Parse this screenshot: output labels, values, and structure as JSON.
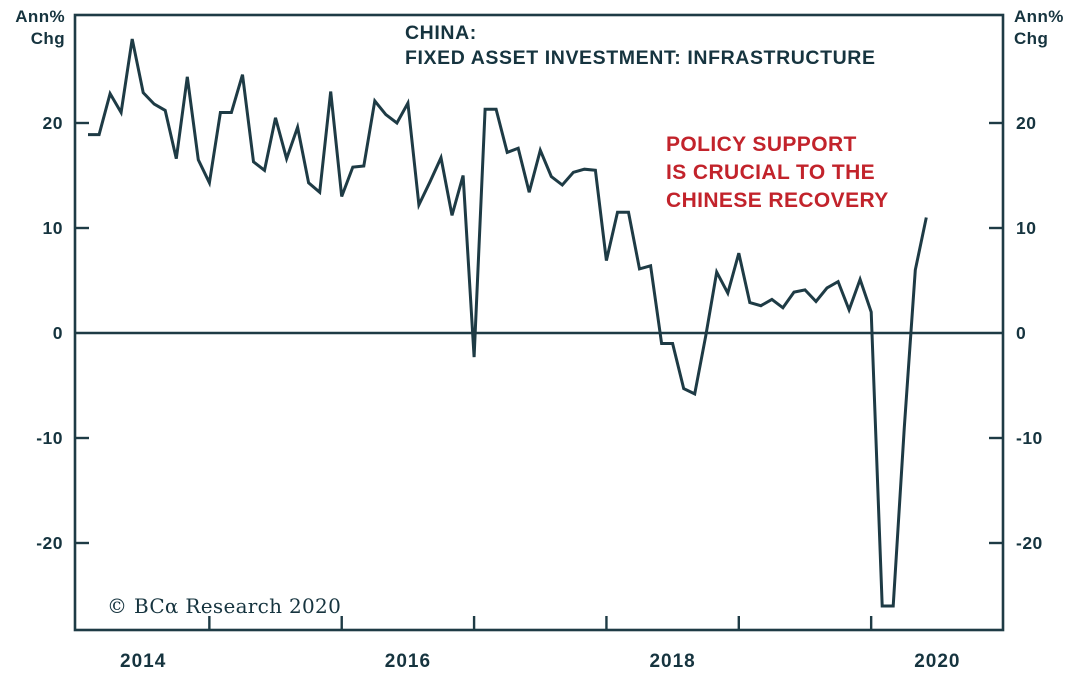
{
  "title": {
    "line1": "CHINA:",
    "line2": "FIXED ASSET INVESTMENT: INFRASTRUCTURE"
  },
  "annotation": {
    "lines": [
      "POLICY SUPPORT",
      "IS CRUCIAL TO THE",
      "CHINESE RECOVERY"
    ]
  },
  "axis_units": {
    "line1": "Ann%",
    "line2": "Chg"
  },
  "copyright": "© BCα Research 2020",
  "colors": {
    "line": "#1e3b45",
    "text": "#16343f",
    "annotation": "#c2232b",
    "background": "#ffffff"
  },
  "chart_data": {
    "type": "line",
    "title": "CHINA: FIXED ASSET INVESTMENT: INFRASTRUCTURE",
    "xlabel": "",
    "ylabel": "Ann% Chg",
    "xlim": [
      2014.0,
      2021.0
    ],
    "ylim": [
      -28.3,
      30.3
    ],
    "y_ticks": [
      20,
      10,
      0,
      -10,
      -20
    ],
    "x_tick_years": [
      2015,
      2016,
      2017,
      2018,
      2019,
      2020
    ],
    "x_axis_labels": [
      2014,
      2016,
      2018,
      2020
    ],
    "grid": false,
    "zero_line": true,
    "legend_position": "none",
    "series": [
      {
        "name": "Fixed asset investment: infrastructure (annual % change)",
        "points": [
          [
            "2014-02",
            18.9
          ],
          [
            "2014-03",
            18.9
          ],
          [
            "2014-04",
            22.8
          ],
          [
            "2014-05",
            21.0
          ],
          [
            "2014-06",
            28.0
          ],
          [
            "2014-07",
            22.9
          ],
          [
            "2014-08",
            21.8
          ],
          [
            "2014-09",
            21.2
          ],
          [
            "2014-10",
            16.6
          ],
          [
            "2014-11",
            24.4
          ],
          [
            "2014-12",
            16.5
          ],
          [
            "2015-01",
            14.3
          ],
          [
            "2015-02",
            21.0
          ],
          [
            "2015-03",
            21.0
          ],
          [
            "2015-04",
            24.6
          ],
          [
            "2015-05",
            16.3
          ],
          [
            "2015-06",
            15.5
          ],
          [
            "2015-07",
            20.5
          ],
          [
            "2015-08",
            16.6
          ],
          [
            "2015-09",
            19.6
          ],
          [
            "2015-10",
            14.3
          ],
          [
            "2015-11",
            13.4
          ],
          [
            "2015-12",
            23.0
          ],
          [
            "2016-01",
            13.0
          ],
          [
            "2016-02",
            15.8
          ],
          [
            "2016-03",
            15.9
          ],
          [
            "2016-04",
            22.1
          ],
          [
            "2016-05",
            20.8
          ],
          [
            "2016-06",
            20.0
          ],
          [
            "2016-07",
            21.9
          ],
          [
            "2016-08",
            12.2
          ],
          [
            "2016-09",
            14.4
          ],
          [
            "2016-10",
            16.7
          ],
          [
            "2016-11",
            11.2
          ],
          [
            "2016-12",
            15.0
          ],
          [
            "2017-01",
            -2.3
          ],
          [
            "2017-02",
            21.3
          ],
          [
            "2017-03",
            21.3
          ],
          [
            "2017-04",
            17.2
          ],
          [
            "2017-05",
            17.6
          ],
          [
            "2017-06",
            13.4
          ],
          [
            "2017-07",
            17.4
          ],
          [
            "2017-08",
            14.9
          ],
          [
            "2017-09",
            14.1
          ],
          [
            "2017-10",
            15.3
          ],
          [
            "2017-11",
            15.6
          ],
          [
            "2017-12",
            15.5
          ],
          [
            "2018-01",
            6.9
          ],
          [
            "2018-02",
            11.5
          ],
          [
            "2018-03",
            11.5
          ],
          [
            "2018-04",
            6.1
          ],
          [
            "2018-05",
            6.4
          ],
          [
            "2018-06",
            -1.0
          ],
          [
            "2018-07",
            -1.0
          ],
          [
            "2018-08",
            -5.3
          ],
          [
            "2018-09",
            -5.8
          ],
          [
            "2018-10",
            -0.3
          ],
          [
            "2018-11",
            5.8
          ],
          [
            "2018-12",
            3.8
          ],
          [
            "2019-01",
            7.6
          ],
          [
            "2019-02",
            2.9
          ],
          [
            "2019-03",
            2.6
          ],
          [
            "2019-04",
            3.2
          ],
          [
            "2019-05",
            2.4
          ],
          [
            "2019-06",
            3.9
          ],
          [
            "2019-07",
            4.1
          ],
          [
            "2019-08",
            3.0
          ],
          [
            "2019-09",
            4.3
          ],
          [
            "2019-10",
            4.9
          ],
          [
            "2019-11",
            2.2
          ],
          [
            "2019-12",
            5.1
          ],
          [
            "2020-01",
            2.0
          ],
          [
            "2020-02",
            -26.0
          ],
          [
            "2020-03",
            -26.0
          ],
          [
            "2020-04",
            -9.0
          ],
          [
            "2020-05",
            6.0
          ],
          [
            "2020-06",
            11.0
          ]
        ]
      }
    ]
  }
}
